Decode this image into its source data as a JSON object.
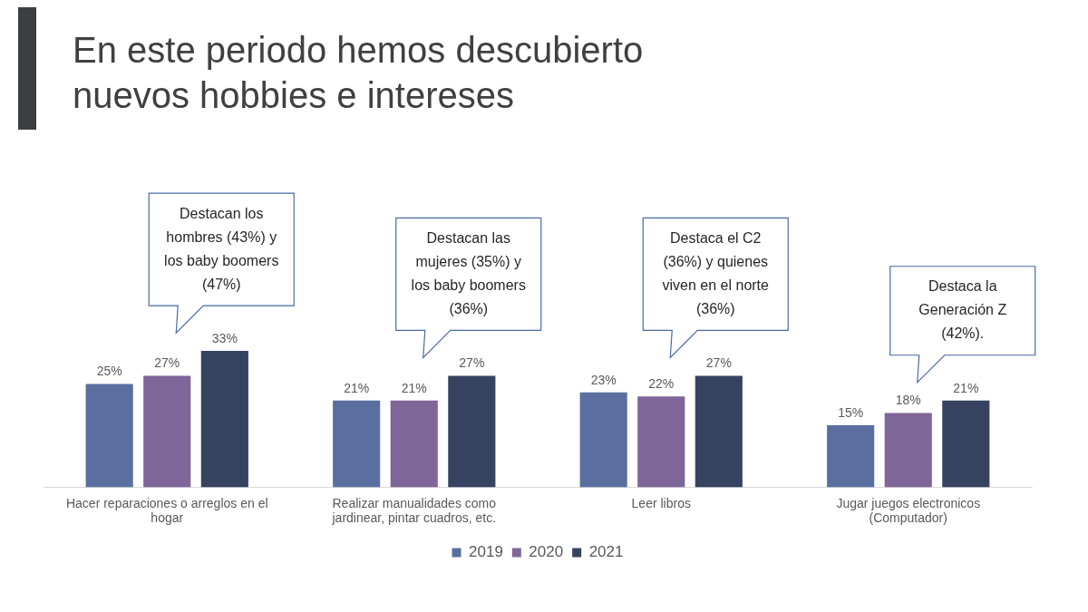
{
  "chart_data": {
    "type": "bar",
    "title": "En este periodo hemos descubierto nuevos hobbies e intereses",
    "categories": [
      "Hacer reparaciones o arreglos en el hogar",
      "Realizar manualidades como jardinear, pintar cuadros, etc.",
      "Leer libros",
      "Jugar juegos electronicos (Computador)"
    ],
    "series": [
      {
        "name": "2019",
        "color": "#5a6fa0",
        "values": [
          25,
          21,
          23,
          15
        ],
        "value_labels": [
          "25%",
          "21%",
          "23%",
          "15%"
        ]
      },
      {
        "name": "2020",
        "color": "#7f6698",
        "values": [
          27,
          21,
          22,
          18
        ],
        "value_labels": [
          "27%",
          "21%",
          "22%",
          "18%"
        ]
      },
      {
        "name": "2021",
        "color": "#364360",
        "values": [
          33,
          27,
          27,
          21
        ],
        "value_labels": [
          "33%",
          "27%",
          "27%",
          "21%"
        ]
      }
    ],
    "legend": "bottom",
    "grid": false,
    "annotations": [
      "Destacan los hombres (43%) y los baby boomers (47%)",
      "Destacan las mujeres (35%) y los baby boomers (36%)",
      "Destaca el C2 (36%) y quienes viven en el norte (36%)",
      "Destaca la Generación Z (42%)."
    ]
  }
}
